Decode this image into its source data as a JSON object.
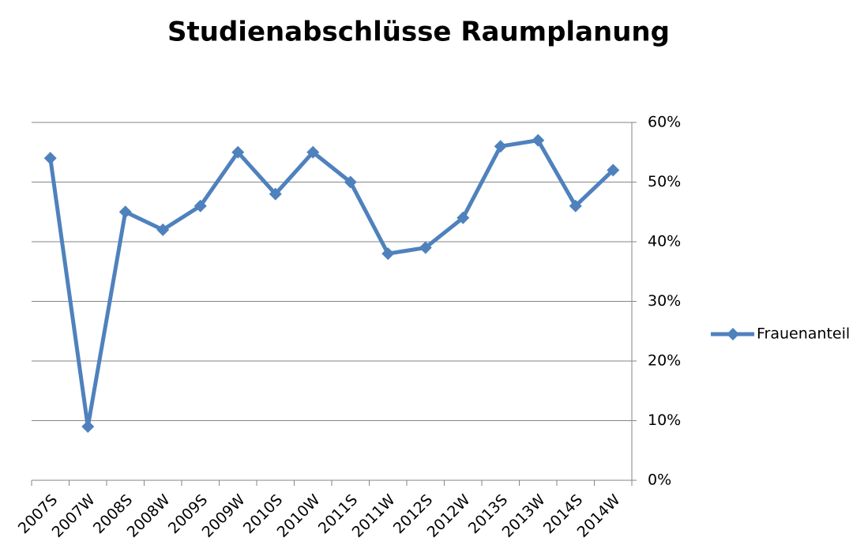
{
  "chart_data": {
    "type": "line",
    "title": "Studienabschlüsse Raumplanung",
    "categories": [
      "2007S",
      "2007W",
      "2008S",
      "2008W",
      "2009S",
      "2009W",
      "2010S",
      "2010W",
      "2011S",
      "2011W",
      "2012S",
      "2012W",
      "2013S",
      "2013W",
      "2014S",
      "2014W"
    ],
    "series": [
      {
        "name": "Frauenanteil",
        "color": "#4f81bd",
        "values": [
          54,
          9,
          45,
          42,
          46,
          55,
          48,
          55,
          50,
          38,
          39,
          44,
          56,
          57,
          46,
          52
        ]
      }
    ],
    "ylim": [
      0,
      60
    ],
    "yticks": [
      {
        "value": 0,
        "label": "0%"
      },
      {
        "value": 10,
        "label": "10%"
      },
      {
        "value": 20,
        "label": "20%"
      },
      {
        "value": 30,
        "label": "30%"
      },
      {
        "value": 40,
        "label": "40%"
      },
      {
        "value": 50,
        "label": "50%"
      },
      {
        "value": 60,
        "label": "60%"
      }
    ],
    "grid": true,
    "y_axis_side": "right",
    "legend": "right"
  }
}
